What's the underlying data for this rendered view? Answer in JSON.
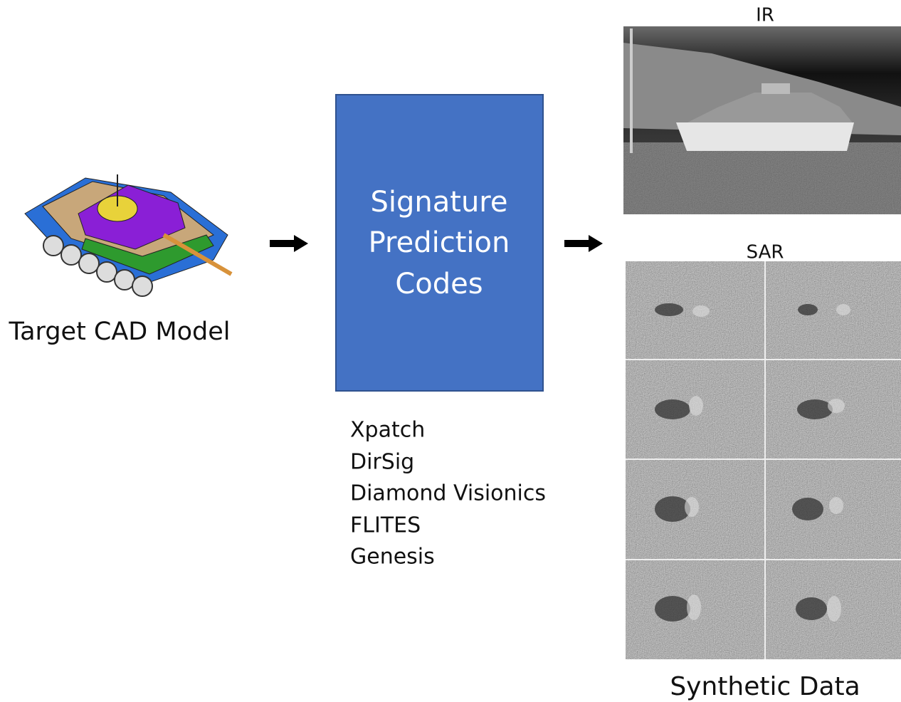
{
  "input": {
    "label": "Target CAD Model"
  },
  "box": {
    "lines": [
      "Signature",
      "Prediction",
      "Codes"
    ]
  },
  "codes": [
    "Xpatch",
    "DirSig",
    "Diamond Visionics",
    "FLITES",
    "Genesis"
  ],
  "outputs": {
    "ir_label": "IR",
    "sar_label": "SAR",
    "caption": "Synthetic Data"
  }
}
